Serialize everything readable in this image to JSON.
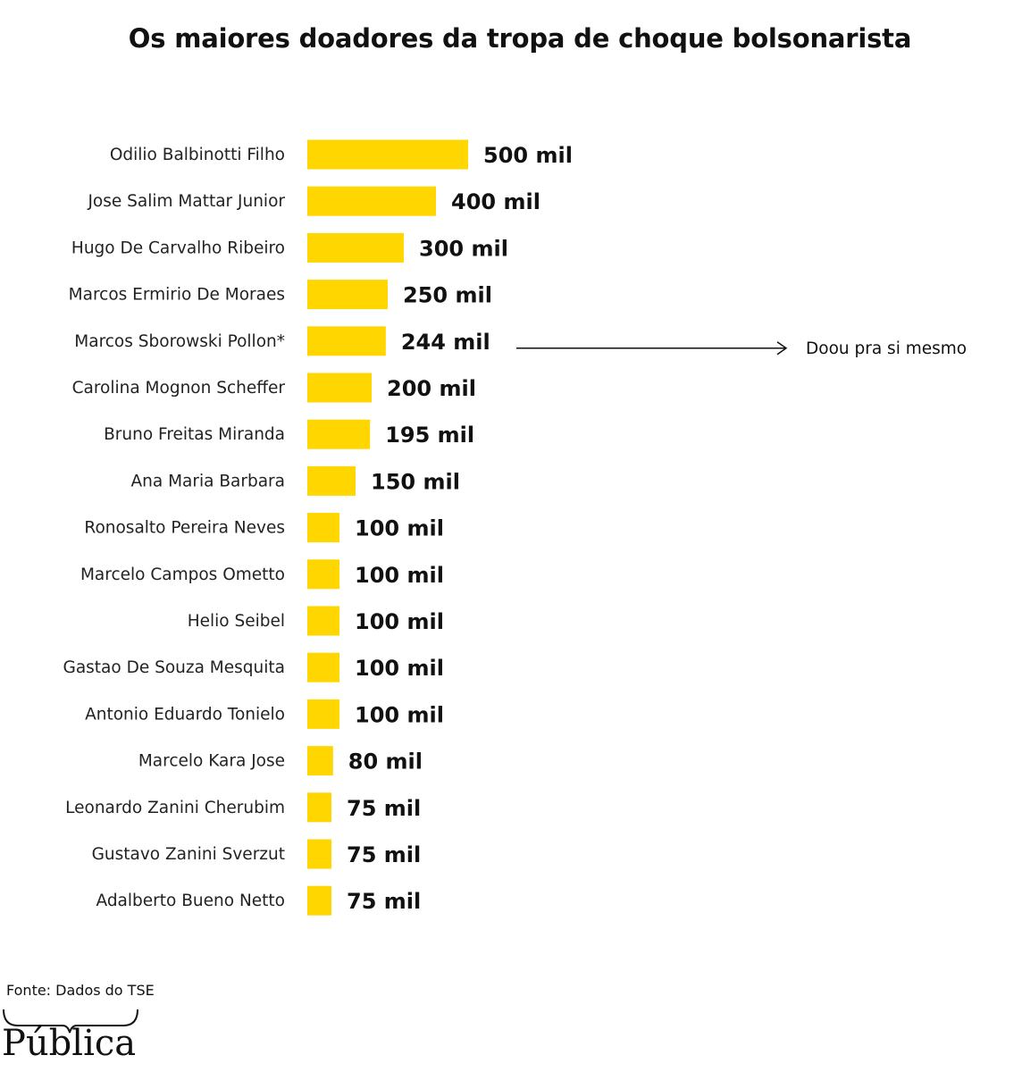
{
  "title": "Os maiores doadores da tropa de choque bolsonarista",
  "chart_data": {
    "type": "bar",
    "orientation": "horizontal",
    "bar_color": "#FFD600",
    "categories": [
      "Odilio Balbinotti Filho",
      "Jose Salim Mattar Junior",
      "Hugo De Carvalho Ribeiro",
      "Marcos Ermirio De Moraes",
      "Marcos Sborowski Pollon*",
      "Carolina Mognon Scheffer",
      "Bruno Freitas Miranda",
      "Ana Maria Barbara",
      "Ronosalto Pereira Neves",
      "Marcelo Campos Ometto",
      "Helio Seibel",
      "Gastao De Souza Mesquita",
      "Antonio Eduardo Tonielo",
      "Marcelo Kara Jose",
      "Leonardo Zanini Cherubim",
      "Gustavo Zanini Sverzut",
      "Adalberto Bueno Netto"
    ],
    "values": [
      500,
      400,
      300,
      250,
      244,
      200,
      195,
      150,
      100,
      100,
      100,
      100,
      100,
      80,
      75,
      75,
      75
    ],
    "value_labels": [
      "500 mil",
      "400 mil",
      "300 mil",
      "250 mil",
      "244 mil",
      "200 mil",
      "195 mil",
      "150 mil",
      "100 mil",
      "100 mil",
      "100 mil",
      "100 mil",
      "100 mil",
      "80 mil",
      "75 mil",
      "75 mil",
      "75 mil"
    ],
    "annotation": {
      "category_index": 4,
      "text": "Doou pra si mesmo"
    },
    "xlim": [
      0,
      500
    ],
    "grid": false,
    "legend": "none"
  },
  "footer": {
    "source": "Fonte: Dados do TSE",
    "logo_text": "Pública"
  }
}
